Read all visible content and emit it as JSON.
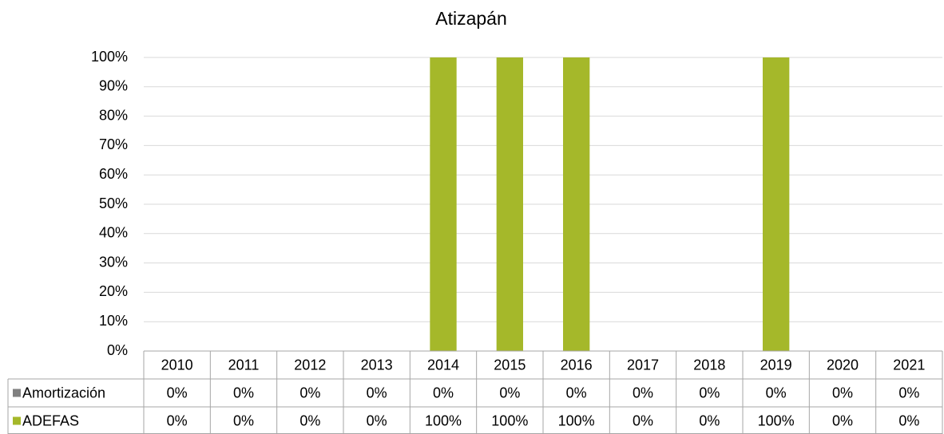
{
  "chart_data": {
    "type": "stacked_bar",
    "title": "Atizapán",
    "categories": [
      "2010",
      "2011",
      "2012",
      "2013",
      "2014",
      "2015",
      "2016",
      "2017",
      "2018",
      "2019",
      "2020",
      "2021"
    ],
    "series": [
      {
        "name": "Amortización",
        "color": "#808080",
        "values": [
          0,
          0,
          0,
          0,
          0,
          0,
          0,
          0,
          0,
          0,
          0,
          0
        ],
        "value_labels": [
          "0%",
          "0%",
          "0%",
          "0%",
          "0%",
          "0%",
          "0%",
          "0%",
          "0%",
          "0%",
          "0%",
          "0%"
        ]
      },
      {
        "name": "ADEFAS",
        "color": "#a5b82a",
        "values": [
          0,
          0,
          0,
          0,
          100,
          100,
          100,
          0,
          0,
          100,
          0,
          0
        ],
        "value_labels": [
          "0%",
          "0%",
          "0%",
          "0%",
          "100%",
          "100%",
          "100%",
          "0%",
          "0%",
          "100%",
          "0%",
          "0%"
        ]
      }
    ],
    "ylim": [
      0,
      100
    ],
    "yticks": [
      {
        "value": 0,
        "label": "0%"
      },
      {
        "value": 10,
        "label": "10%"
      },
      {
        "value": 20,
        "label": "20%"
      },
      {
        "value": 30,
        "label": "30%"
      },
      {
        "value": 40,
        "label": "40%"
      },
      {
        "value": 50,
        "label": "50%"
      },
      {
        "value": 60,
        "label": "60%"
      },
      {
        "value": 70,
        "label": "70%"
      },
      {
        "value": 80,
        "label": "80%"
      },
      {
        "value": 90,
        "label": "90%"
      },
      {
        "value": 100,
        "label": "100%"
      }
    ],
    "grid": true
  }
}
